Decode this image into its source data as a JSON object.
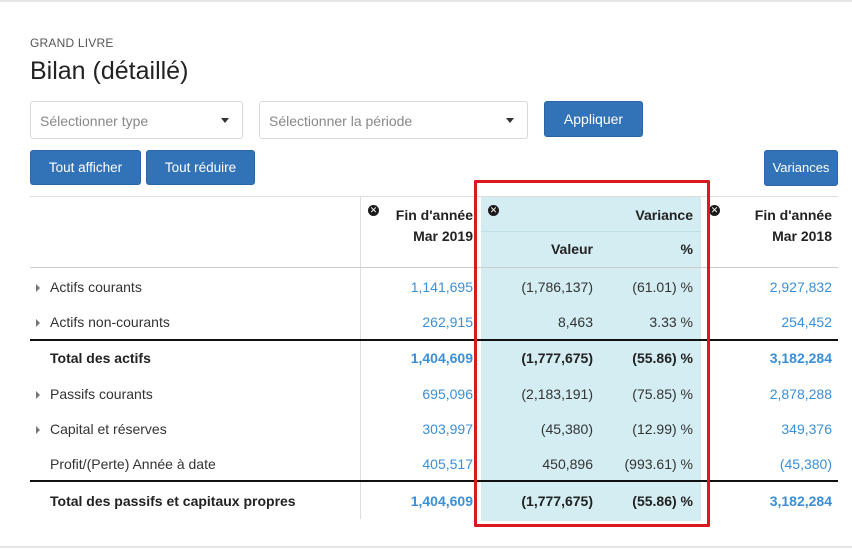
{
  "header": {
    "eyebrow": "GRAND LIVRE",
    "title": "Bilan (détaillé)"
  },
  "filters": {
    "type_placeholder": "Sélectionner type",
    "period_placeholder": "Sélectionner la période",
    "apply_label": "Appliquer"
  },
  "toolbar": {
    "expand_all_label": "Tout afficher",
    "collapse_all_label": "Tout réduire",
    "variances_label": "Variances"
  },
  "columns": {
    "col1_line1": "Fin d'année",
    "col1_line2": "Mar 2019",
    "variance_title": "Variance",
    "variance_value": "Valeur",
    "variance_pct": "%",
    "col3_line1": "Fin d'année",
    "col3_line2": "Mar 2018"
  },
  "rows": [
    {
      "label": "Actifs courants",
      "expandable": true,
      "total": false,
      "col1": "1,141,695",
      "value": "(1,786,137)",
      "pct": "(61.01) %",
      "col3": "2,927,832"
    },
    {
      "label": "Actifs non-courants",
      "expandable": true,
      "total": false,
      "col1": "262,915",
      "value": "8,463",
      "pct": "3.33 %",
      "col3": "254,452"
    },
    {
      "label": "Total des actifs",
      "expandable": false,
      "total": true,
      "col1": "1,404,609",
      "value": "(1,777,675)",
      "pct": "(55.86) %",
      "col3": "3,182,284"
    },
    {
      "label": "Passifs courants",
      "expandable": true,
      "total": false,
      "col1": "695,096",
      "value": "(2,183,191)",
      "pct": "(75.85) %",
      "col3": "2,878,288"
    },
    {
      "label": "Capital et réserves",
      "expandable": true,
      "total": false,
      "col1": "303,997",
      "value": "(45,380)",
      "pct": "(12.99) %",
      "col3": "349,376"
    },
    {
      "label": "Profit/(Perte) Année à date",
      "expandable": false,
      "total": false,
      "col1": "405,517",
      "value": "450,896",
      "pct": "(993.61) %",
      "col3": "(45,380)"
    },
    {
      "label": "Total des passifs et capitaux propres",
      "expandable": false,
      "total": true,
      "col1": "1,404,609",
      "value": "(1,777,675)",
      "pct": "(55.86) %",
      "col3": "3,182,284"
    }
  ],
  "colors": {
    "accent": "#3272b6",
    "link_value": "#3a8fd6",
    "variance_highlight": "#d3edf3",
    "annotation_box": "#d9191f"
  },
  "icons": {
    "remove_column": "close-circle-icon",
    "expand_row": "caret-right-icon"
  }
}
